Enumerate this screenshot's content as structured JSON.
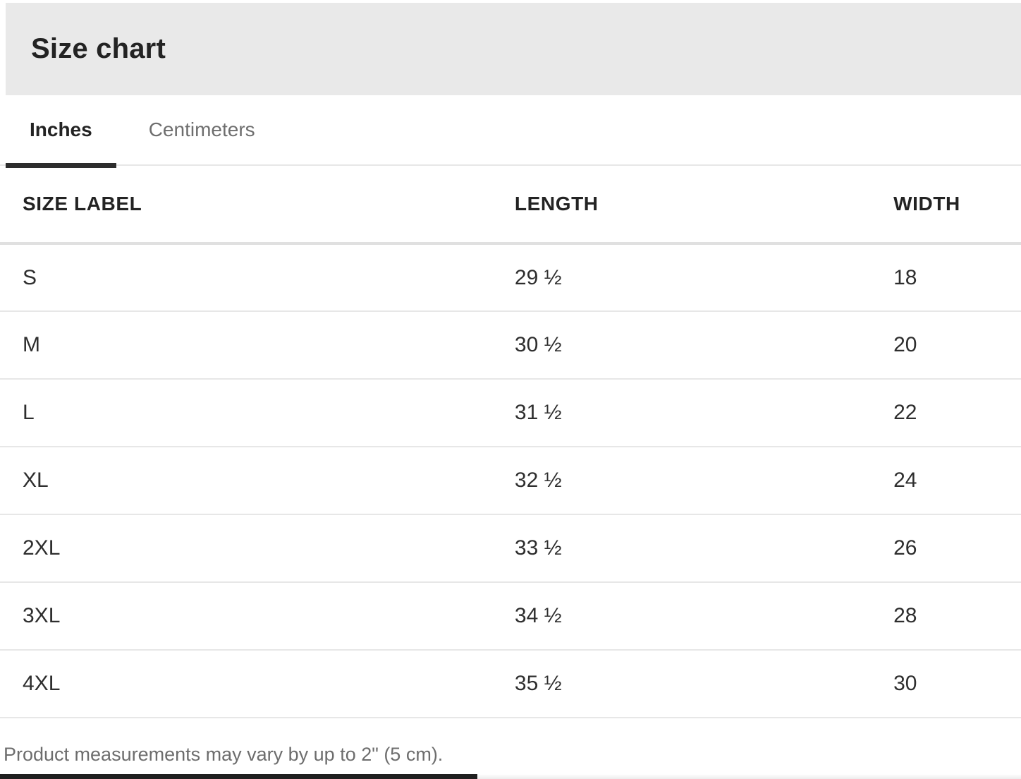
{
  "modal": {
    "title": "Size chart"
  },
  "tabs": {
    "items": [
      {
        "label": "Inches",
        "active": true
      },
      {
        "label": "Centimeters",
        "active": false
      }
    ]
  },
  "table": {
    "columns": [
      "SIZE LABEL",
      "LENGTH",
      "WIDTH"
    ],
    "rows": [
      {
        "size": "S",
        "length": "29 ½",
        "width": "18"
      },
      {
        "size": "M",
        "length": "30 ½",
        "width": "20"
      },
      {
        "size": "L",
        "length": "31 ½",
        "width": "22"
      },
      {
        "size": "XL",
        "length": "32 ½",
        "width": "24"
      },
      {
        "size": "2XL",
        "length": "33 ½",
        "width": "26"
      },
      {
        "size": "3XL",
        "length": "34 ½",
        "width": "28"
      },
      {
        "size": "4XL",
        "length": "35 ½",
        "width": "30"
      }
    ]
  },
  "footnote": "Product measurements may vary by up to 2\" (5 cm).",
  "colors": {
    "header_bg": "#e9e9e9",
    "title_text": "#232323",
    "tab_active": "#232323",
    "tab_inactive": "#6e6e6e",
    "tab_underline": "#2d2d2d",
    "divider": "#e7e7e7",
    "header_divider": "#e0e0e0",
    "cell_text": "#2e2e2e",
    "footnote_text": "#6d6d6d",
    "bottom_bar": "#1f1f1f"
  }
}
